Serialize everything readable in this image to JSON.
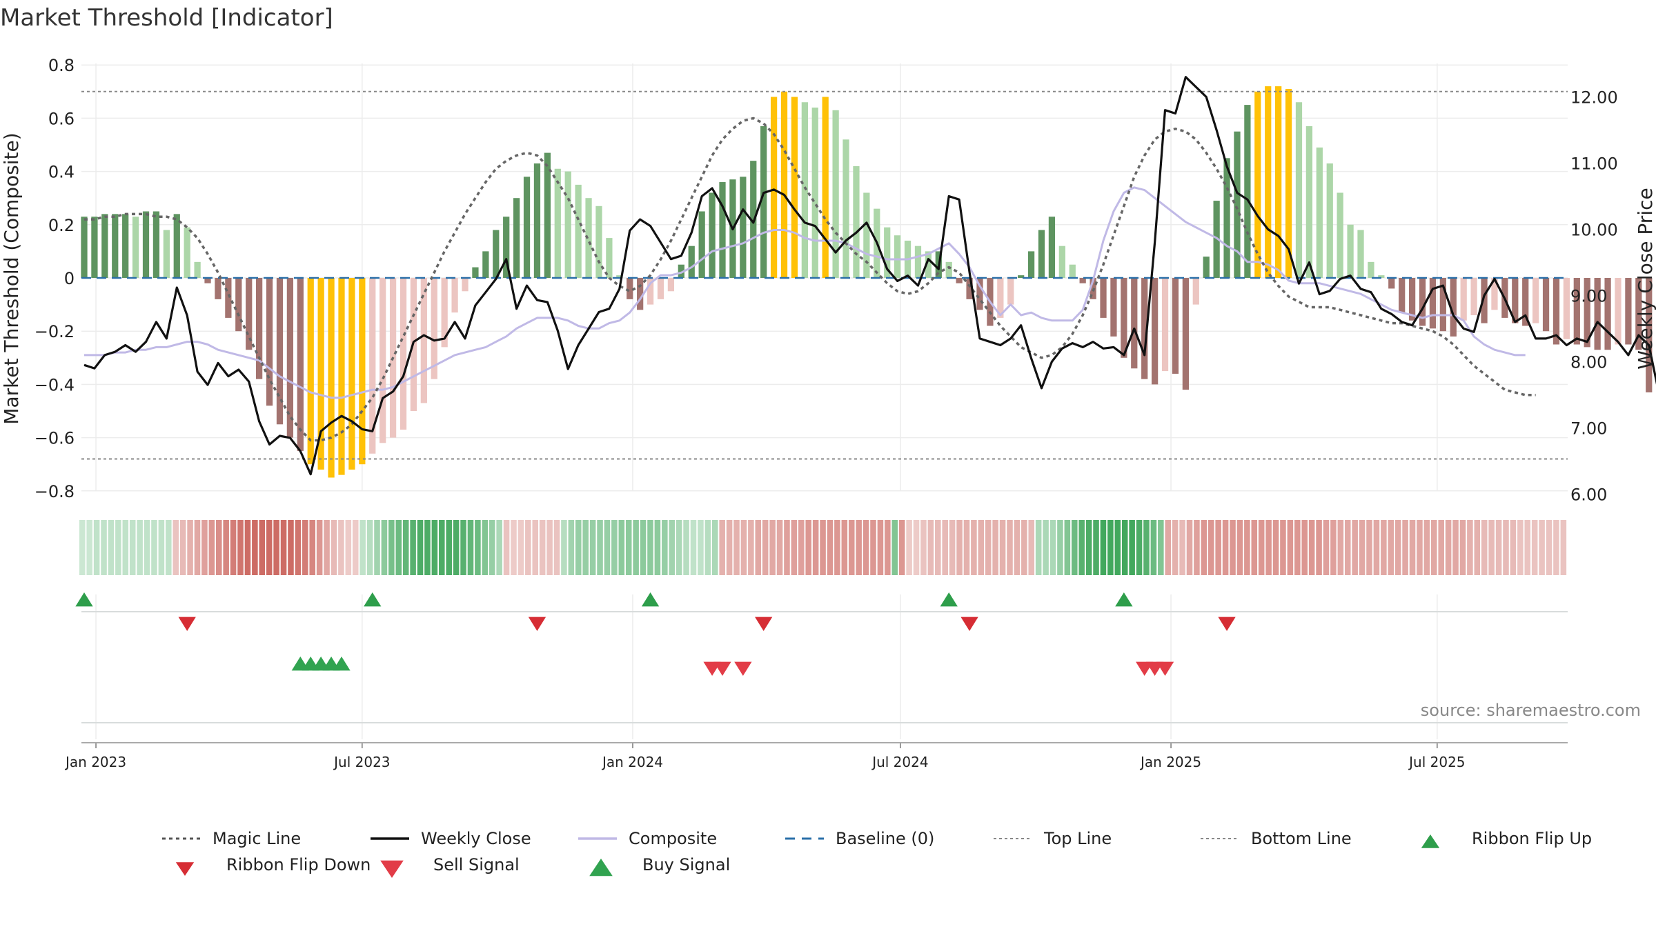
{
  "chart_data": {
    "type": "bar",
    "title": "Market Threshold [Indicator]",
    "ylabel_left": "Market Threshold (Composite)",
    "ylabel_right": "Weekly Close Price",
    "ylim_left": [
      -0.8,
      0.8
    ],
    "ylim_right": [
      6.0,
      12.0
    ],
    "yticks_left": [
      "0.8",
      "0.6",
      "0.4",
      "0.2",
      "0",
      "−0.2",
      "−0.4",
      "−0.6",
      "−0.8"
    ],
    "yticks_right": [
      "12.00",
      "11.00",
      "10.00",
      "9.00",
      "8.00",
      "7.00",
      "6.00"
    ],
    "xticks": [
      "Jan 2023",
      "Jul 2023",
      "Jan 2024",
      "Jul 2024",
      "Jan 2025",
      "Jul 2025"
    ],
    "grid": true,
    "start_date": "2022-12-24",
    "levels": {
      "top_line": 0.7,
      "bottom_line": -0.68,
      "baseline": 0
    },
    "composite_bars": [
      0.23,
      0.23,
      0.24,
      0.24,
      0.24,
      0.23,
      0.25,
      0.25,
      0.18,
      0.24,
      0.19,
      0.06,
      -0.02,
      -0.08,
      -0.15,
      -0.2,
      -0.27,
      -0.38,
      -0.48,
      -0.55,
      -0.6,
      -0.65,
      -0.7,
      -0.72,
      -0.75,
      -0.74,
      -0.72,
      -0.7,
      -0.66,
      -0.62,
      -0.6,
      -0.57,
      -0.5,
      -0.47,
      -0.38,
      -0.26,
      -0.13,
      -0.05,
      0.04,
      0.1,
      0.18,
      0.23,
      0.3,
      0.38,
      0.43,
      0.47,
      0.41,
      0.4,
      0.35,
      0.3,
      0.27,
      0.15,
      0.01,
      -0.08,
      -0.12,
      -0.1,
      -0.08,
      -0.05,
      0.05,
      0.12,
      0.25,
      0.32,
      0.36,
      0.37,
      0.38,
      0.44,
      0.57,
      0.68,
      0.7,
      0.68,
      0.66,
      0.64,
      0.68,
      0.63,
      0.52,
      0.42,
      0.32,
      0.26,
      0.19,
      0.16,
      0.14,
      0.12,
      0.1,
      0.1,
      0.06,
      -0.02,
      -0.08,
      -0.12,
      -0.18,
      -0.15,
      -0.1,
      0.01,
      0.1,
      0.18,
      0.23,
      0.12,
      0.05,
      -0.02,
      -0.08,
      -0.15,
      -0.22,
      -0.3,
      -0.34,
      -0.38,
      -0.4,
      -0.35,
      -0.36,
      -0.42,
      -0.1,
      0.08,
      0.29,
      0.45,
      0.55,
      0.65,
      0.7,
      0.72,
      0.72,
      0.71,
      0.66,
      0.57,
      0.49,
      0.43,
      0.32,
      0.2,
      0.18,
      0.06,
      0.01,
      -0.04,
      -0.13,
      -0.16,
      -0.18,
      -0.19,
      -0.2,
      -0.22,
      -0.16,
      -0.14,
      -0.17,
      -0.12,
      -0.15,
      -0.17,
      -0.18,
      -0.17,
      -0.2,
      -0.25,
      -0.23,
      -0.25,
      -0.26,
      -0.27,
      -0.27,
      -0.25,
      -0.25,
      -0.27,
      -0.43,
      -0.46,
      -0.49,
      -0.52,
      -0.58,
      -0.52,
      -0.5,
      -0.49,
      -0.44,
      -0.44,
      -0.4
    ],
    "weekly_close": [
      7.95,
      7.9,
      8.1,
      8.15,
      8.25,
      8.15,
      8.3,
      8.6,
      8.35,
      9.12,
      8.7,
      7.85,
      7.65,
      7.98,
      7.78,
      7.88,
      7.7,
      7.1,
      6.75,
      6.88,
      6.85,
      6.65,
      6.3,
      6.95,
      7.08,
      7.18,
      7.1,
      6.98,
      6.95,
      7.45,
      7.55,
      7.78,
      8.3,
      8.4,
      8.32,
      8.35,
      8.6,
      8.35,
      8.85,
      9.05,
      9.25,
      9.55,
      8.8,
      9.15,
      8.93,
      8.9,
      8.47,
      7.89,
      8.25,
      8.5,
      8.75,
      8.8,
      9.1,
      9.98,
      10.15,
      10.05,
      9.8,
      9.55,
      9.6,
      9.95,
      10.5,
      10.62,
      10.35,
      10.0,
      10.3,
      10.1,
      10.55,
      10.6,
      10.52,
      10.3,
      10.1,
      10.05,
      9.85,
      9.65,
      9.83,
      9.95,
      10.1,
      9.8,
      9.4,
      9.22,
      9.3,
      9.15,
      9.55,
      9.4,
      10.5,
      10.45,
      9.35,
      8.35,
      8.3,
      8.25,
      8.35,
      8.55,
      8.05,
      7.6,
      8.0,
      8.2,
      8.28,
      8.22,
      8.3,
      8.2,
      8.22,
      8.1,
      8.5,
      8.1,
      9.8,
      11.8,
      11.75,
      12.3,
      12.15,
      12.0,
      11.5,
      10.95,
      10.55,
      10.45,
      10.2,
      10.0,
      9.9,
      9.7,
      9.18,
      9.5,
      9.02,
      9.07,
      9.25,
      9.3,
      9.1,
      9.05,
      8.8,
      8.72,
      8.6,
      8.55,
      8.8,
      9.1,
      9.15,
      8.7,
      8.5,
      8.45,
      9.0,
      9.25,
      8.95,
      8.6,
      8.7,
      8.35,
      8.35,
      8.4,
      8.25,
      8.35,
      8.3,
      8.6,
      8.45,
      8.3,
      8.1,
      8.4,
      8.25,
      7.5,
      7.35,
      7.6,
      7.55,
      7.7,
      7.78,
      7.85,
      7.7,
      7.9
    ],
    "magic_line": [
      0.22,
      0.22,
      0.23,
      0.23,
      0.24,
      0.24,
      0.24,
      0.23,
      0.23,
      0.22,
      0.19,
      0.15,
      0.09,
      0.02,
      -0.06,
      -0.14,
      -0.22,
      -0.3,
      -0.38,
      -0.45,
      -0.52,
      -0.57,
      -0.61,
      -0.61,
      -0.6,
      -0.58,
      -0.55,
      -0.5,
      -0.45,
      -0.38,
      -0.3,
      -0.22,
      -0.14,
      -0.06,
      0.02,
      0.1,
      0.17,
      0.24,
      0.3,
      0.36,
      0.41,
      0.44,
      0.46,
      0.47,
      0.46,
      0.42,
      0.36,
      0.3,
      0.22,
      0.14,
      0.06,
      0.0,
      -0.03,
      -0.05,
      -0.03,
      0.01,
      0.07,
      0.14,
      0.22,
      0.3,
      0.38,
      0.46,
      0.52,
      0.56,
      0.59,
      0.6,
      0.58,
      0.54,
      0.48,
      0.41,
      0.34,
      0.28,
      0.22,
      0.17,
      0.13,
      0.09,
      0.06,
      0.02,
      -0.02,
      -0.05,
      -0.06,
      -0.05,
      -0.02,
      0.02,
      0.04,
      0.02,
      -0.03,
      -0.08,
      -0.13,
      -0.18,
      -0.22,
      -0.26,
      -0.28,
      -0.3,
      -0.29,
      -0.26,
      -0.21,
      -0.14,
      -0.05,
      0.05,
      0.16,
      0.27,
      0.38,
      0.46,
      0.52,
      0.55,
      0.56,
      0.55,
      0.52,
      0.47,
      0.41,
      0.34,
      0.26,
      0.17,
      0.09,
      0.02,
      -0.03,
      -0.07,
      -0.09,
      -0.11,
      -0.11,
      -0.11,
      -0.12,
      -0.13,
      -0.14,
      -0.15,
      -0.16,
      -0.17,
      -0.17,
      -0.18,
      -0.19,
      -0.2,
      -0.22,
      -0.25,
      -0.29,
      -0.33,
      -0.36,
      -0.39,
      -0.42,
      -0.43,
      -0.44,
      -0.44
    ],
    "composite": [
      -0.29,
      -0.29,
      -0.29,
      -0.28,
      -0.28,
      -0.27,
      -0.27,
      -0.26,
      -0.26,
      -0.25,
      -0.24,
      -0.24,
      -0.25,
      -0.27,
      -0.28,
      -0.29,
      -0.3,
      -0.31,
      -0.34,
      -0.37,
      -0.39,
      -0.41,
      -0.43,
      -0.44,
      -0.45,
      -0.45,
      -0.44,
      -0.43,
      -0.42,
      -0.42,
      -0.41,
      -0.39,
      -0.37,
      -0.35,
      -0.33,
      -0.31,
      -0.29,
      -0.28,
      -0.27,
      -0.26,
      -0.24,
      -0.22,
      -0.19,
      -0.17,
      -0.15,
      -0.15,
      -0.15,
      -0.16,
      -0.18,
      -0.19,
      -0.19,
      -0.17,
      -0.16,
      -0.13,
      -0.08,
      -0.02,
      0.01,
      0.01,
      0.02,
      0.04,
      0.07,
      0.1,
      0.11,
      0.12,
      0.13,
      0.15,
      0.17,
      0.18,
      0.18,
      0.17,
      0.15,
      0.14,
      0.14,
      0.14,
      0.13,
      0.11,
      0.09,
      0.08,
      0.07,
      0.07,
      0.07,
      0.08,
      0.09,
      0.11,
      0.13,
      0.09,
      0.04,
      -0.03,
      -0.09,
      -0.14,
      -0.1,
      -0.14,
      -0.13,
      -0.15,
      -0.16,
      -0.16,
      -0.16,
      -0.12,
      -0.01,
      0.14,
      0.25,
      0.32,
      0.34,
      0.33,
      0.3,
      0.27,
      0.24,
      0.21,
      0.19,
      0.17,
      0.15,
      0.12,
      0.1,
      0.06,
      0.06,
      0.05,
      0.03,
      -0.01,
      -0.02,
      -0.02,
      -0.02,
      -0.03,
      -0.04,
      -0.05,
      -0.06,
      -0.08,
      -0.1,
      -0.12,
      -0.13,
      -0.14,
      -0.15,
      -0.14,
      -0.14,
      -0.14,
      -0.16,
      -0.22,
      -0.25,
      -0.27,
      -0.28,
      -0.29,
      -0.29
    ],
    "ribbon": {
      "direction": [
        1,
        1,
        1,
        1,
        1,
        1,
        1,
        1,
        1,
        1,
        1,
        1,
        1,
        -1,
        -1,
        -1,
        -1,
        -1,
        -1,
        -1,
        -1,
        -1,
        -1,
        -1,
        -1,
        -1,
        -1,
        -1,
        -1,
        -1,
        -1,
        -1,
        -1,
        -1,
        -1,
        -1,
        -1,
        -1,
        -1,
        1,
        1,
        1,
        1,
        1,
        1,
        1,
        1,
        1,
        1,
        1,
        1,
        1,
        1,
        1,
        1,
        1,
        1,
        1,
        1,
        -1,
        -1,
        -1,
        -1,
        -1,
        -1,
        -1,
        -1,
        1,
        1,
        1,
        1,
        1,
        1,
        1,
        1,
        1,
        1,
        1,
        1,
        1,
        1,
        1,
        1,
        1,
        1,
        1,
        1,
        1,
        1,
        -1,
        -1,
        -1,
        -1,
        -1,
        -1,
        -1,
        -1,
        -1,
        -1,
        -1,
        -1,
        -1,
        -1,
        -1,
        -1,
        -1,
        -1,
        -1,
        -1,
        -1,
        -1,
        -1,
        -1,
        1,
        -1,
        -1,
        -1,
        -1,
        -1,
        -1,
        -1,
        -1,
        -1,
        -1,
        -1,
        -1,
        -1,
        -1,
        -1,
        -1,
        -1,
        -1,
        -1,
        1,
        1,
        1,
        1,
        1,
        1,
        1,
        1,
        1,
        1,
        1,
        1,
        1,
        1,
        1,
        1,
        1,
        1,
        -1,
        -1,
        -1,
        -1,
        -1,
        -1,
        -1,
        -1,
        -1,
        -1,
        -1,
        -1,
        -1,
        -1,
        -1,
        -1,
        -1,
        -1,
        -1,
        -1,
        -1,
        -1,
        -1,
        -1,
        -1,
        -1,
        -1,
        -1,
        -1,
        -1,
        -1,
        -1,
        -1,
        -1,
        -1,
        -1,
        -1,
        -1,
        -1,
        -1,
        -1,
        -1,
        -1,
        -1,
        -1,
        -1,
        -1,
        -1,
        -1,
        -1,
        -1,
        -1,
        -1,
        -1,
        -1,
        -1
      ],
      "strength": [
        0.25,
        0.25,
        0.3,
        0.3,
        0.3,
        0.3,
        0.3,
        0.3,
        0.3,
        0.3,
        0.3,
        0.3,
        0.3,
        0.35,
        0.4,
        0.45,
        0.5,
        0.55,
        0.6,
        0.65,
        0.7,
        0.75,
        0.8,
        0.85,
        0.85,
        0.85,
        0.85,
        0.85,
        0.85,
        0.85,
        0.8,
        0.75,
        0.7,
        0.6,
        0.5,
        0.4,
        0.35,
        0.3,
        0.3,
        0.3,
        0.35,
        0.45,
        0.55,
        0.65,
        0.7,
        0.75,
        0.8,
        0.85,
        0.85,
        0.85,
        0.85,
        0.85,
        0.85,
        0.8,
        0.75,
        0.7,
        0.6,
        0.5,
        0.4,
        0.35,
        0.3,
        0.3,
        0.35,
        0.35,
        0.35,
        0.35,
        0.35,
        0.35,
        0.45,
        0.5,
        0.5,
        0.5,
        0.5,
        0.5,
        0.5,
        0.55,
        0.55,
        0.55,
        0.55,
        0.55,
        0.55,
        0.5,
        0.45,
        0.4,
        0.35,
        0.3,
        0.3,
        0.35,
        0.4,
        0.45,
        0.45,
        0.45,
        0.45,
        0.45,
        0.5,
        0.5,
        0.5,
        0.5,
        0.55,
        0.55,
        0.55,
        0.6,
        0.6,
        0.6,
        0.6,
        0.6,
        0.6,
        0.6,
        0.6,
        0.6,
        0.6,
        0.6,
        0.6,
        0.6,
        0.6,
        0.3,
        0.3,
        0.35,
        0.4,
        0.4,
        0.4,
        0.4,
        0.45,
        0.45,
        0.45,
        0.45,
        0.45,
        0.45,
        0.45,
        0.45,
        0.45,
        0.45,
        0.4,
        0.4,
        0.4,
        0.4,
        0.5,
        0.6,
        0.7,
        0.8,
        0.85,
        0.85,
        0.9,
        0.9,
        0.9,
        0.9,
        0.9,
        0.85,
        0.8,
        0.7,
        0.6,
        0.5,
        0.45,
        0.4,
        0.5,
        0.55,
        0.6,
        0.6,
        0.6,
        0.6,
        0.6,
        0.6,
        0.6,
        0.6,
        0.6,
        0.6,
        0.6,
        0.6,
        0.6,
        0.6,
        0.6,
        0.6,
        0.6,
        0.55,
        0.55,
        0.5,
        0.5,
        0.5,
        0.5,
        0.5,
        0.5,
        0.5,
        0.5,
        0.5,
        0.5,
        0.5,
        0.5,
        0.5,
        0.5,
        0.5,
        0.5,
        0.5,
        0.5,
        0.45,
        0.45,
        0.4,
        0.4,
        0.4,
        0.4,
        0.4,
        0.35,
        0.35,
        0.35,
        0.35,
        0.35,
        0.35,
        0.35,
        0.35,
        0.35,
        0.35
      ]
    },
    "ribbon_flip_up": [
      "2022-12-24",
      "2023-07-08",
      "2024-01-13",
      "2024-08-03",
      "2024-11-30"
    ],
    "ribbon_flip_down": [
      "2023-03-04",
      "2023-10-28",
      "2024-03-30",
      "2024-08-17",
      "2025-02-08"
    ],
    "buy_signal": [
      "2023-05-20",
      "2023-05-27",
      "2023-06-03",
      "2023-06-10",
      "2023-06-17"
    ],
    "sell_signal": [
      "2024-02-24",
      "2024-03-02",
      "2024-03-16",
      "2024-12-14",
      "2024-12-21",
      "2024-12-28"
    ]
  },
  "colors": {
    "up_strong": "#5e9460",
    "up_weak": "#acd6a8",
    "down_strong": "#a3736f",
    "down_weak": "#ecc5c1",
    "extreme": "#ffc107",
    "close": "#111111",
    "composite": "#c0b9e6",
    "magic": "#666666",
    "level": "#888888",
    "baseline": "#2a6fa8",
    "flip_up": "#2e9e4b",
    "flip_down": "#d62d34",
    "buy": "#31a350",
    "sell": "#e23c47"
  },
  "source": "source: sharemaestro.com",
  "legend": [
    {
      "label": "Magic Line",
      "icon": "dotted-line"
    },
    {
      "label": "Weekly Close",
      "icon": "solid-line"
    },
    {
      "label": "Composite",
      "icon": "purple-line"
    },
    {
      "label": "Baseline (0)",
      "icon": "dashed-blue-line"
    },
    {
      "label": "Top Line",
      "icon": "dotted-gray-line"
    },
    {
      "label": "Bottom Line",
      "icon": "dotted-gray-line"
    },
    {
      "label": "Ribbon Flip Up",
      "icon": "triangle-up-icon"
    },
    {
      "label": "Ribbon Flip Down",
      "icon": "triangle-down-icon"
    },
    {
      "label": "Sell Signal",
      "icon": "triangle-down-icon"
    },
    {
      "label": "Buy Signal",
      "icon": "triangle-up-icon"
    }
  ]
}
